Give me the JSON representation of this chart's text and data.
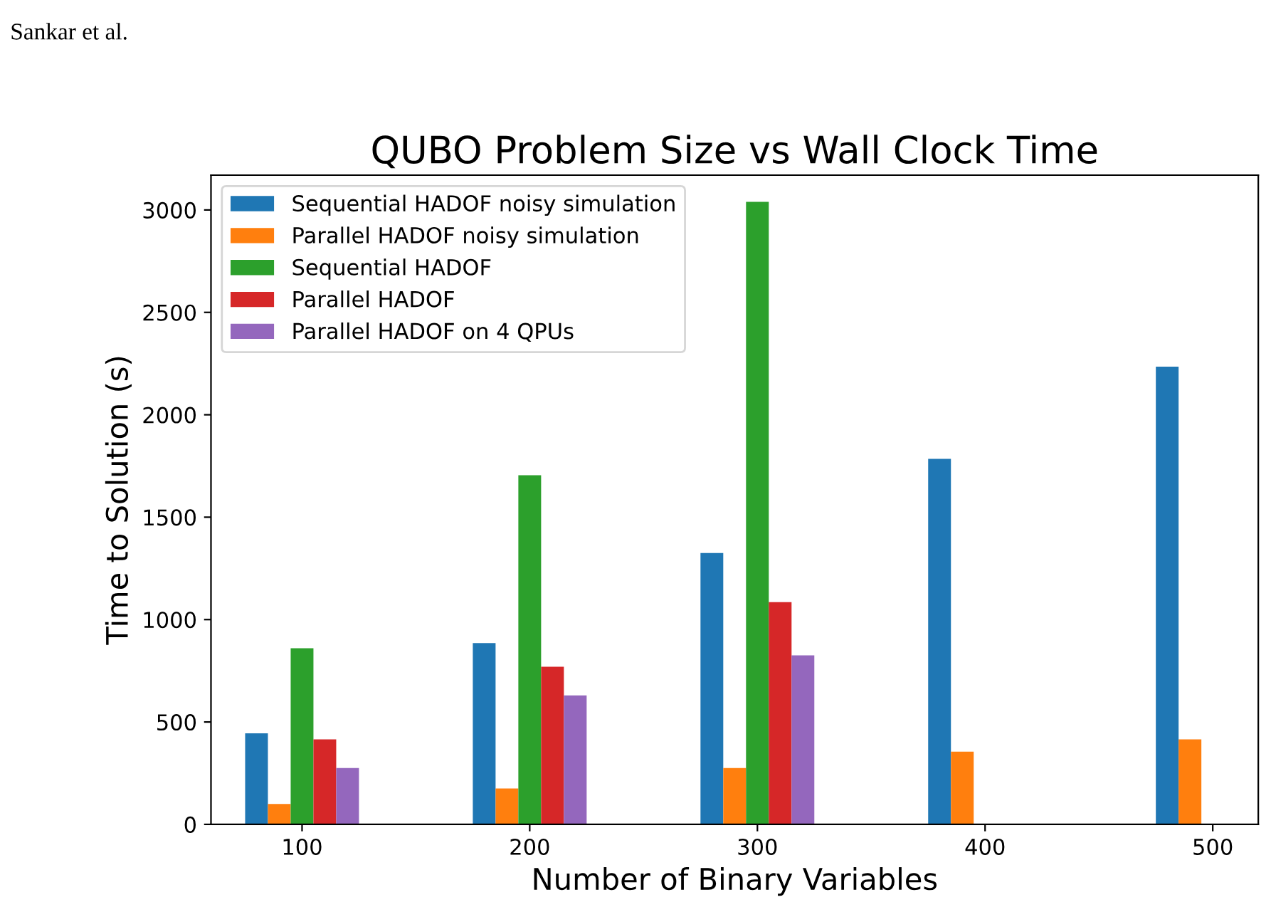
{
  "chart_data": {
    "type": "bar",
    "title": "QUBO Problem Size vs Wall Clock Time",
    "xlabel": "Number of Binary Variables",
    "ylabel": "Time to Solution (s)",
    "annotations": [
      "Sankar et al."
    ],
    "categories": [
      "100",
      "200",
      "300",
      "400",
      "500"
    ],
    "series": [
      {
        "name": "Sequential HADOF noisy simulation",
        "color": "#1f77b4",
        "values": [
          445,
          885,
          1325,
          1785,
          2235
        ]
      },
      {
        "name": "Parallel HADOF noisy simulation",
        "color": "#ff7f0e",
        "values": [
          100,
          175,
          275,
          355,
          415
        ]
      },
      {
        "name": "Sequential HADOF",
        "color": "#2ca02c",
        "values": [
          860,
          1705,
          3040,
          null,
          null
        ]
      },
      {
        "name": "Parallel HADOF",
        "color": "#d62728",
        "values": [
          415,
          770,
          1085,
          null,
          null
        ]
      },
      {
        "name": "Parallel HADOF on 4 QPUs",
        "color": "#9467bd",
        "values": [
          275,
          630,
          825,
          null,
          null
        ]
      }
    ],
    "ylim": [
      0,
      3170
    ],
    "yticks": [
      0,
      500,
      1000,
      1500,
      2000,
      2500,
      3000
    ],
    "grid": false,
    "legend": "top left"
  }
}
